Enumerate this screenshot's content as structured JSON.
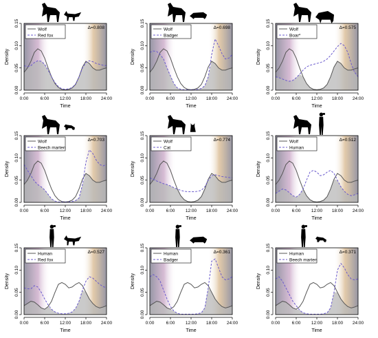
{
  "figure": {
    "xlabel": "Time",
    "ylabel": "Density",
    "x_ticks": [
      "0:00",
      "6:00",
      "12:00",
      "18:00",
      "24:00"
    ],
    "y_ticks": [
      "0.00",
      "0.05",
      "0.10",
      "0.15"
    ]
  },
  "chart_data": [
    {
      "type": "line",
      "legend": [
        "Wolf",
        "Red fox"
      ],
      "delta": "Δ=0.808",
      "icons": [
        "wolf-icon",
        "red-fox-icon"
      ],
      "xlabel": "Time",
      "ylabel": "Density",
      "xlim": [
        0,
        24
      ],
      "ylim": [
        0,
        0.15
      ],
      "x": [
        0,
        1,
        2,
        3,
        4,
        5,
        6,
        7,
        8,
        9,
        10,
        11,
        12,
        13,
        14,
        15,
        16,
        17,
        18,
        19,
        20,
        21,
        22,
        23,
        24
      ],
      "series": [
        {
          "name": "Wolf",
          "values": [
            0.04,
            0.05,
            0.065,
            0.085,
            0.093,
            0.088,
            0.072,
            0.05,
            0.03,
            0.015,
            0.006,
            0.002,
            0.001,
            0.002,
            0.005,
            0.013,
            0.03,
            0.052,
            0.065,
            0.06,
            0.05,
            0.045,
            0.045,
            0.048,
            0.05
          ],
          "style": "solid"
        },
        {
          "name": "Red fox",
          "values": [
            0.055,
            0.053,
            0.055,
            0.062,
            0.066,
            0.065,
            0.058,
            0.045,
            0.03,
            0.017,
            0.008,
            0.003,
            0.002,
            0.003,
            0.006,
            0.014,
            0.03,
            0.05,
            0.062,
            0.066,
            0.064,
            0.06,
            0.058,
            0.056,
            0.055
          ],
          "style": "dashed"
        }
      ]
    },
    {
      "type": "line",
      "legend": [
        "Wolf",
        "Badger"
      ],
      "delta": "Δ=0.698",
      "icons": [
        "wolf-icon",
        "badger-icon"
      ],
      "xlabel": "Time",
      "ylabel": "Density",
      "xlim": [
        0,
        24
      ],
      "ylim": [
        0,
        0.15
      ],
      "x": [
        0,
        1,
        2,
        3,
        4,
        5,
        6,
        7,
        8,
        9,
        10,
        11,
        12,
        13,
        14,
        15,
        16,
        17,
        18,
        19,
        20,
        21,
        22,
        23,
        24
      ],
      "series": [
        {
          "name": "Wolf",
          "values": [
            0.04,
            0.05,
            0.065,
            0.085,
            0.093,
            0.088,
            0.072,
            0.05,
            0.03,
            0.015,
            0.006,
            0.002,
            0.001,
            0.002,
            0.005,
            0.013,
            0.03,
            0.052,
            0.065,
            0.06,
            0.05,
            0.045,
            0.045,
            0.048,
            0.05
          ],
          "style": "solid"
        },
        {
          "name": "Badger",
          "values": [
            0.085,
            0.088,
            0.087,
            0.08,
            0.07,
            0.05,
            0.032,
            0.015,
            0.005,
            0.002,
            0.001,
            0.001,
            0.001,
            0.001,
            0.002,
            0.004,
            0.01,
            0.03,
            0.08,
            0.115,
            0.1,
            0.082,
            0.07,
            0.072,
            0.08
          ],
          "style": "dashed"
        }
      ]
    },
    {
      "type": "line",
      "legend": [
        "Wolf",
        "Boar*"
      ],
      "delta": "Δ=0.575",
      "icons": [
        "wolf-icon",
        "boar-icon"
      ],
      "xlabel": "Time",
      "ylabel": "Density",
      "xlim": [
        0,
        24
      ],
      "ylim": [
        0,
        0.15
      ],
      "x": [
        0,
        1,
        2,
        3,
        4,
        5,
        6,
        7,
        8,
        9,
        10,
        11,
        12,
        13,
        14,
        15,
        16,
        17,
        18,
        19,
        20,
        21,
        22,
        23,
        24
      ],
      "series": [
        {
          "name": "Wolf",
          "values": [
            0.04,
            0.05,
            0.065,
            0.085,
            0.093,
            0.088,
            0.072,
            0.05,
            0.03,
            0.015,
            0.006,
            0.002,
            0.001,
            0.002,
            0.005,
            0.013,
            0.03,
            0.052,
            0.065,
            0.06,
            0.05,
            0.045,
            0.045,
            0.048,
            0.05
          ],
          "style": "solid"
        },
        {
          "name": "Boar*",
          "values": [
            0.03,
            0.028,
            0.025,
            0.022,
            0.02,
            0.022,
            0.028,
            0.036,
            0.045,
            0.052,
            0.056,
            0.058,
            0.06,
            0.062,
            0.065,
            0.07,
            0.078,
            0.088,
            0.098,
            0.105,
            0.1,
            0.085,
            0.06,
            0.04,
            0.03
          ],
          "style": "dashed"
        }
      ]
    },
    {
      "type": "line",
      "legend": [
        "Wolf",
        "Beech marten"
      ],
      "delta": "Δ=0.703",
      "icons": [
        "wolf-icon",
        "beech-marten-icon"
      ],
      "xlabel": "Time",
      "ylabel": "Density",
      "xlim": [
        0,
        24
      ],
      "ylim": [
        0,
        0.15
      ],
      "x": [
        0,
        1,
        2,
        3,
        4,
        5,
        6,
        7,
        8,
        9,
        10,
        11,
        12,
        13,
        14,
        15,
        16,
        17,
        18,
        19,
        20,
        21,
        22,
        23,
        24
      ],
      "series": [
        {
          "name": "Wolf",
          "values": [
            0.04,
            0.05,
            0.065,
            0.085,
            0.093,
            0.088,
            0.072,
            0.05,
            0.03,
            0.015,
            0.006,
            0.002,
            0.001,
            0.002,
            0.005,
            0.013,
            0.03,
            0.052,
            0.065,
            0.06,
            0.05,
            0.045,
            0.045,
            0.048,
            0.05
          ],
          "style": "solid"
        },
        {
          "name": "Beech marten",
          "values": [
            0.085,
            0.072,
            0.06,
            0.048,
            0.04,
            0.035,
            0.028,
            0.018,
            0.008,
            0.003,
            0.001,
            0.001,
            0.001,
            0.001,
            0.002,
            0.004,
            0.01,
            0.04,
            0.09,
            0.118,
            0.11,
            0.095,
            0.085,
            0.082,
            0.085
          ],
          "style": "dashed"
        }
      ]
    },
    {
      "type": "line",
      "legend": [
        "Wolf",
        "Cat"
      ],
      "delta": "Δ=0.774",
      "icons": [
        "wolf-icon",
        "cat-icon"
      ],
      "xlabel": "Time",
      "ylabel": "Density",
      "xlim": [
        0,
        24
      ],
      "ylim": [
        0,
        0.15
      ],
      "x": [
        0,
        1,
        2,
        3,
        4,
        5,
        6,
        7,
        8,
        9,
        10,
        11,
        12,
        13,
        14,
        15,
        16,
        17,
        18,
        19,
        20,
        21,
        22,
        23,
        24
      ],
      "series": [
        {
          "name": "Wolf",
          "values": [
            0.04,
            0.05,
            0.065,
            0.085,
            0.093,
            0.088,
            0.072,
            0.05,
            0.03,
            0.015,
            0.006,
            0.002,
            0.001,
            0.002,
            0.005,
            0.013,
            0.03,
            0.052,
            0.065,
            0.06,
            0.05,
            0.045,
            0.045,
            0.048,
            0.05
          ],
          "style": "solid"
        },
        {
          "name": "Cat",
          "values": [
            0.055,
            0.052,
            0.048,
            0.045,
            0.042,
            0.04,
            0.037,
            0.033,
            0.03,
            0.027,
            0.025,
            0.024,
            0.024,
            0.024,
            0.025,
            0.027,
            0.035,
            0.05,
            0.06,
            0.062,
            0.06,
            0.058,
            0.057,
            0.056,
            0.055
          ],
          "style": "dashed"
        }
      ]
    },
    {
      "type": "line",
      "legend": [
        "Wolf",
        "Human"
      ],
      "delta": "Δ=0.512",
      "icons": [
        "wolf-icon",
        "human-icon"
      ],
      "xlabel": "Time",
      "ylabel": "Density",
      "xlim": [
        0,
        24
      ],
      "ylim": [
        0,
        0.15
      ],
      "x": [
        0,
        1,
        2,
        3,
        4,
        5,
        6,
        7,
        8,
        9,
        10,
        11,
        12,
        13,
        14,
        15,
        16,
        17,
        18,
        19,
        20,
        21,
        22,
        23,
        24
      ],
      "series": [
        {
          "name": "Wolf",
          "values": [
            0.04,
            0.05,
            0.065,
            0.085,
            0.093,
            0.088,
            0.072,
            0.05,
            0.03,
            0.015,
            0.006,
            0.002,
            0.001,
            0.002,
            0.005,
            0.013,
            0.03,
            0.052,
            0.065,
            0.06,
            0.05,
            0.045,
            0.045,
            0.048,
            0.05
          ],
          "style": "solid"
        },
        {
          "name": "Human",
          "values": [
            0.02,
            0.025,
            0.03,
            0.028,
            0.022,
            0.015,
            0.012,
            0.018,
            0.03,
            0.05,
            0.068,
            0.072,
            0.068,
            0.06,
            0.062,
            0.068,
            0.072,
            0.065,
            0.05,
            0.035,
            0.025,
            0.018,
            0.015,
            0.017,
            0.02
          ],
          "style": "dashed"
        }
      ]
    },
    {
      "type": "line",
      "legend": [
        "Human",
        "Red fox"
      ],
      "delta": "Δ=0.527",
      "icons": [
        "human-icon",
        "red-fox-icon"
      ],
      "xlabel": "Time",
      "ylabel": "Density",
      "xlim": [
        0,
        24
      ],
      "ylim": [
        0,
        0.15
      ],
      "x": [
        0,
        1,
        2,
        3,
        4,
        5,
        6,
        7,
        8,
        9,
        10,
        11,
        12,
        13,
        14,
        15,
        16,
        17,
        18,
        19,
        20,
        21,
        22,
        23,
        24
      ],
      "series": [
        {
          "name": "Human",
          "values": [
            0.02,
            0.025,
            0.03,
            0.028,
            0.022,
            0.015,
            0.012,
            0.018,
            0.03,
            0.05,
            0.068,
            0.072,
            0.068,
            0.06,
            0.062,
            0.068,
            0.072,
            0.065,
            0.05,
            0.035,
            0.025,
            0.018,
            0.015,
            0.017,
            0.02
          ],
          "style": "solid"
        },
        {
          "name": "Red fox",
          "values": [
            0.06,
            0.058,
            0.058,
            0.065,
            0.062,
            0.05,
            0.035,
            0.022,
            0.012,
            0.006,
            0.003,
            0.002,
            0.002,
            0.003,
            0.006,
            0.014,
            0.03,
            0.055,
            0.075,
            0.085,
            0.082,
            0.075,
            0.068,
            0.063,
            0.06
          ],
          "style": "dashed"
        }
      ]
    },
    {
      "type": "line",
      "legend": [
        "Human",
        "Badger"
      ],
      "delta": "Δ=0.361",
      "icons": [
        "human-icon",
        "badger-icon"
      ],
      "xlabel": "Time",
      "ylabel": "Density",
      "xlim": [
        0,
        24
      ],
      "ylim": [
        0,
        0.15
      ],
      "x": [
        0,
        1,
        2,
        3,
        4,
        5,
        6,
        7,
        8,
        9,
        10,
        11,
        12,
        13,
        14,
        15,
        16,
        17,
        18,
        19,
        20,
        21,
        22,
        23,
        24
      ],
      "series": [
        {
          "name": "Human",
          "values": [
            0.02,
            0.025,
            0.03,
            0.028,
            0.022,
            0.015,
            0.012,
            0.018,
            0.03,
            0.05,
            0.068,
            0.072,
            0.068,
            0.06,
            0.062,
            0.068,
            0.072,
            0.065,
            0.05,
            0.035,
            0.025,
            0.018,
            0.015,
            0.017,
            0.02
          ],
          "style": "solid"
        },
        {
          "name": "Badger",
          "values": [
            0.085,
            0.09,
            0.085,
            0.075,
            0.055,
            0.035,
            0.018,
            0.008,
            0.003,
            0.001,
            0.001,
            0.001,
            0.001,
            0.001,
            0.002,
            0.004,
            0.015,
            0.06,
            0.12,
            0.125,
            0.105,
            0.085,
            0.078,
            0.08,
            0.085
          ],
          "style": "dashed"
        }
      ]
    },
    {
      "type": "line",
      "legend": [
        "Human",
        "Beech marten"
      ],
      "delta": "Δ=0.371",
      "icons": [
        "human-icon",
        "beech-marten-icon"
      ],
      "xlabel": "Time",
      "ylabel": "Density",
      "xlim": [
        0,
        24
      ],
      "ylim": [
        0,
        0.15
      ],
      "x": [
        0,
        1,
        2,
        3,
        4,
        5,
        6,
        7,
        8,
        9,
        10,
        11,
        12,
        13,
        14,
        15,
        16,
        17,
        18,
        19,
        20,
        21,
        22,
        23,
        24
      ],
      "series": [
        {
          "name": "Human",
          "values": [
            0.02,
            0.025,
            0.03,
            0.028,
            0.022,
            0.015,
            0.012,
            0.018,
            0.03,
            0.05,
            0.068,
            0.072,
            0.068,
            0.06,
            0.062,
            0.068,
            0.072,
            0.065,
            0.05,
            0.035,
            0.025,
            0.018,
            0.015,
            0.017,
            0.02
          ],
          "style": "solid"
        },
        {
          "name": "Beech marten",
          "values": [
            0.08,
            0.085,
            0.075,
            0.06,
            0.045,
            0.03,
            0.02,
            0.01,
            0.004,
            0.002,
            0.001,
            0.001,
            0.001,
            0.001,
            0.002,
            0.004,
            0.015,
            0.05,
            0.1,
            0.115,
            0.105,
            0.09,
            0.08,
            0.078,
            0.08
          ],
          "style": "dashed"
        }
      ]
    }
  ],
  "colors": {
    "line_a": "#555555",
    "line_b": "#6a5acd",
    "overlap_fill": "#b8b8b8",
    "dawn": "#c9a6c6",
    "dusk": "#d9b98e",
    "night": "#8a8a9a"
  }
}
